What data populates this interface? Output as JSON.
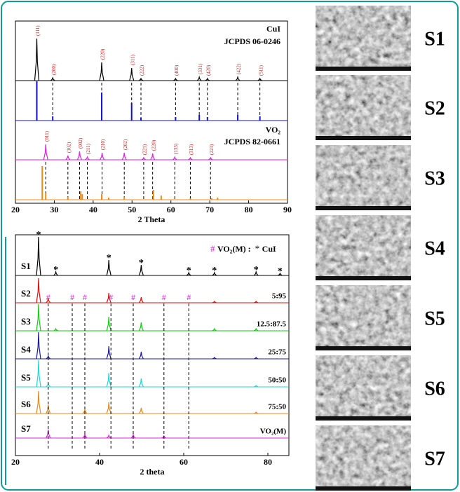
{
  "chart_data": [
    {
      "type": "xrd_reference",
      "xlabel": "2 Theta",
      "xlim": [
        20,
        90
      ],
      "xticks": [
        20,
        30,
        40,
        50,
        60,
        70,
        80,
        90
      ],
      "phases": [
        {
          "name": "CuI",
          "card": "JCPDS 06-0246",
          "pattern": {
            "color": "#000000",
            "x": [
              25.5,
              29.6,
              42.2,
              49.9,
              52.3,
              61.2,
              67.3,
              69.4,
              77.2,
              82.9
            ],
            "heights": [
              60,
              4,
              26,
              18,
              3,
              3,
              5,
              3,
              5,
              3
            ],
            "hkl": [
              "(111)",
              "(200)",
              "(220)",
              "(311)",
              "(222)",
              "(400)",
              "(331)",
              "(420)",
              "(422)",
              "(511)"
            ]
          },
          "reference": {
            "color": "#1010d0",
            "x": [
              25.5,
              29.6,
              42.2,
              49.9,
              52.3,
              61.2,
              67.3,
              69.4,
              77.2,
              82.9
            ],
            "heights": [
              56,
              6,
              40,
              25,
              4,
              5,
              8,
              5,
              8,
              6
            ]
          }
        },
        {
          "name": "VO₂",
          "card": "JCPDS 82-0661",
          "pattern": {
            "color": "#e020e0",
            "x": [
              27.8,
              33.5,
              36.5,
              38.5,
              42.3,
              48.0,
              53.0,
              55.3,
              61.0,
              65.0,
              70.2
            ],
            "heights": [
              22,
              6,
              12,
              4,
              10,
              10,
              3,
              9,
              4,
              3,
              3
            ],
            "hkl": [
              "(011)",
              "(102)",
              "(002)",
              "(211)",
              "(210)",
              "(202)",
              "(221)",
              "(220)",
              "(133)",
              "(313)",
              "(223)"
            ]
          },
          "reference": {
            "color": "#f08a10",
            "x": [
              26.9,
              27.8,
              33.5,
              36.8,
              37.2,
              42.2,
              44.0,
              48.0,
              55.5,
              57.5,
              65.0,
              70.5,
              72.0
            ],
            "heights": [
              48,
              10,
              4,
              12,
              8,
              8,
              3,
              4,
              14,
              6,
              2,
              2,
              3
            ]
          }
        }
      ]
    },
    {
      "type": "xrd_stack",
      "xlabel": "2 theta",
      "xlim": [
        20,
        85
      ],
      "xticks": [
        20,
        40,
        60,
        80
      ],
      "marker_legend": [
        {
          "symbol": "#",
          "label": "VO₂(M) :",
          "color": "#e020e0"
        },
        {
          "symbol": "*",
          "label": "CuI",
          "color": "#000000"
        }
      ],
      "star_x": [
        25.5,
        29.6,
        42.2,
        49.9,
        61.2,
        67.3,
        77.2,
        82.9
      ],
      "hash_x": [
        27.8,
        33.5,
        36.5,
        42.7,
        48.0,
        55.3,
        61.2
      ],
      "series": [
        {
          "name": "S1",
          "color": "#000000",
          "x": [
            25.5,
            29.6,
            42.2,
            49.9,
            61.2,
            67.3,
            77.2,
            82.9
          ],
          "heights": [
            55,
            5,
            22,
            15,
            4,
            4,
            5,
            3
          ]
        },
        {
          "name": "S2",
          "color": "#e01010",
          "ratio": "5:95",
          "x": [
            25.5,
            27.8,
            42.2,
            49.9,
            67.3,
            77.2
          ],
          "heights": [
            35,
            6,
            14,
            8,
            2,
            2
          ]
        },
        {
          "name": "S3",
          "color": "#10d010",
          "ratio": "12.5:87.5",
          "x": [
            25.5,
            29.6,
            42.2,
            49.9,
            67.3,
            77.2
          ],
          "heights": [
            38,
            3,
            20,
            12,
            3,
            3
          ]
        },
        {
          "name": "S4",
          "color": "#1a1aa0",
          "ratio": "25:75",
          "x": [
            25.5,
            27.8,
            42.2,
            49.9,
            67.3,
            77.2
          ],
          "heights": [
            38,
            4,
            18,
            10,
            2,
            2
          ]
        },
        {
          "name": "S5",
          "color": "#20d8d8",
          "ratio": "50:50",
          "x": [
            25.5,
            27.8,
            42.2,
            49.9,
            77.2
          ],
          "heights": [
            38,
            5,
            20,
            12,
            2
          ]
        },
        {
          "name": "S6",
          "color": "#e8891a",
          "ratio": "75:50",
          "x": [
            25.5,
            27.8,
            36.5,
            42.2,
            49.9,
            77.2
          ],
          "heights": [
            32,
            12,
            6,
            16,
            8,
            2
          ]
        },
        {
          "name": "S7",
          "color": "#e020e0",
          "ratio": "VO₂(M)",
          "x": [
            27.8,
            36.5,
            42.2,
            48.0,
            55.3
          ],
          "heights": [
            12,
            6,
            4,
            5,
            3
          ]
        }
      ]
    }
  ],
  "sem_labels": [
    "S1",
    "S2",
    "S3",
    "S4",
    "S5",
    "S6",
    "S7"
  ]
}
